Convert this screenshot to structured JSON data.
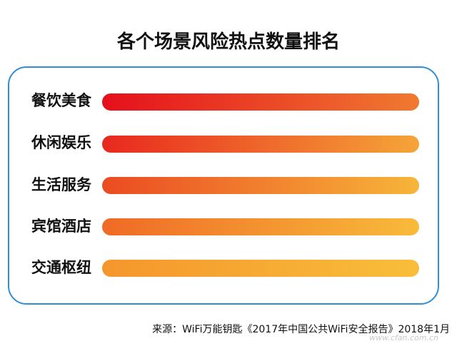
{
  "chart_data": {
    "type": "bar",
    "orientation": "horizontal",
    "title": "各个场景风险热点数量排名",
    "categories": [
      "餐饮美食",
      "休闲娱乐",
      "生活服务",
      "宾馆酒店",
      "交通枢纽"
    ],
    "ranks": [
      1,
      2,
      3,
      4,
      5
    ],
    "colors": {
      "gradients": [
        [
          "#e50f1c",
          "#f07a30"
        ],
        [
          "#e8281e",
          "#f5a538"
        ],
        [
          "#eb4a22",
          "#f7b53a"
        ],
        [
          "#ef6a26",
          "#f8bb3a"
        ],
        [
          "#f5962c",
          "#f8be3a"
        ]
      ],
      "frame": "#2f8fd6"
    }
  },
  "source": "来源：WiFi万能钥匙《2017年中国公共WiFi安全报告》2018年1月",
  "watermark": "www.cfan.com.cn"
}
